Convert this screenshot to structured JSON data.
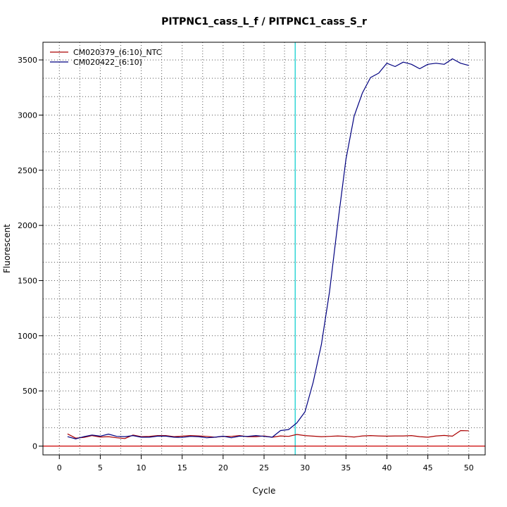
{
  "chart_data": {
    "type": "line",
    "title": "PITPNC1_cass_L_f / PITPNC1_cass_S_r",
    "xlabel": "Cycle",
    "ylabel": "Fluorescent",
    "xlim": [
      -2,
      52
    ],
    "ylim": [
      -80,
      3660
    ],
    "x_ticks": [
      0,
      5,
      10,
      15,
      20,
      25,
      30,
      35,
      40,
      45,
      50
    ],
    "y_ticks": [
      0,
      500,
      1000,
      1500,
      2000,
      2500,
      3000,
      3500
    ],
    "grid": true,
    "legend_position": "top-left",
    "threshold_cycle": 28.8,
    "threshold_color": "#00cccc",
    "baseline_value": 0,
    "baseline_color": "#cc0000",
    "series": [
      {
        "name": "CM020379_(6:10)_NTC",
        "color": "#aa0000",
        "x": [
          1,
          2,
          3,
          4,
          5,
          6,
          7,
          8,
          9,
          10,
          11,
          12,
          13,
          14,
          15,
          16,
          17,
          18,
          19,
          20,
          21,
          22,
          23,
          24,
          25,
          26,
          27,
          28,
          29,
          30,
          31,
          32,
          33,
          34,
          35,
          36,
          37,
          38,
          39,
          40,
          41,
          42,
          43,
          44,
          45,
          46,
          47,
          48,
          49,
          50
        ],
        "values": [
          110,
          72,
          78,
          95,
          82,
          85,
          75,
          68,
          100,
          85,
          88,
          95,
          95,
          85,
          90,
          95,
          92,
          88,
          80,
          88,
          88,
          95,
          85,
          85,
          92,
          80,
          92,
          88,
          105,
          95,
          90,
          85,
          88,
          92,
          88,
          82,
          92,
          95,
          92,
          90,
          92,
          92,
          95,
          85,
          80,
          92,
          96,
          90,
          140,
          138
        ]
      },
      {
        "name": "CM020422_(6:10)",
        "color": "#000080",
        "x": [
          1,
          2,
          3,
          4,
          5,
          6,
          7,
          8,
          9,
          10,
          11,
          12,
          13,
          14,
          15,
          16,
          17,
          18,
          19,
          20,
          21,
          22,
          23,
          24,
          25,
          26,
          27,
          28,
          29,
          30,
          31,
          32,
          33,
          34,
          35,
          36,
          37,
          38,
          39,
          40,
          41,
          42,
          43,
          44,
          45,
          46,
          47,
          48,
          49,
          50
        ],
        "values": [
          85,
          65,
          85,
          100,
          90,
          108,
          88,
          85,
          95,
          80,
          80,
          90,
          90,
          80,
          78,
          88,
          85,
          75,
          80,
          90,
          75,
          90,
          88,
          95,
          88,
          80,
          140,
          150,
          210,
          310,
          580,
          920,
          1400,
          2020,
          2600,
          2990,
          3200,
          3340,
          3380,
          3470,
          3440,
          3480,
          3460,
          3420,
          3460,
          3470,
          3460,
          3510,
          3470,
          3450
        ]
      }
    ]
  }
}
